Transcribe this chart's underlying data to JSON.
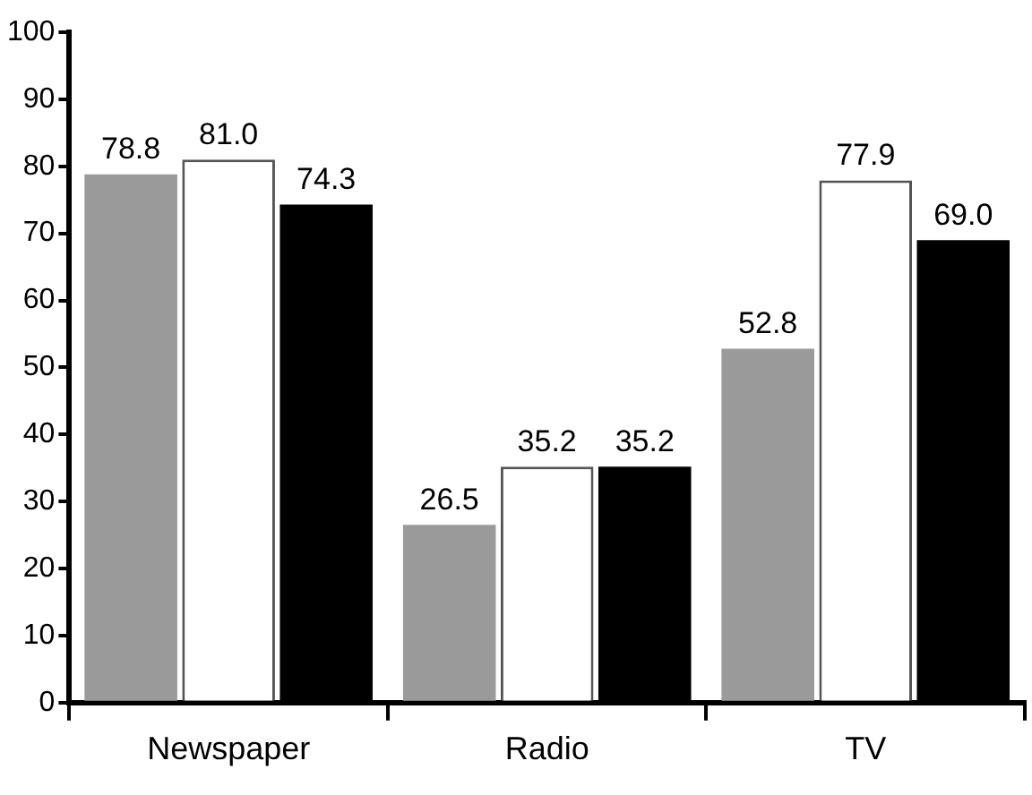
{
  "chart_data": {
    "type": "bar",
    "categories": [
      "Newspaper",
      "Radio",
      "TV"
    ],
    "series": [
      {
        "color": "#9a9a9a",
        "values": [
          78.8,
          26.5,
          52.8
        ],
        "value_labels": [
          "78.8",
          "26.5",
          "52.8"
        ]
      },
      {
        "color": "#ffffff",
        "values": [
          81.0,
          35.2,
          77.9
        ],
        "value_labels": [
          "81.0",
          "35.2",
          "77.9"
        ]
      },
      {
        "color": "#000000",
        "values": [
          74.3,
          35.2,
          69.0
        ],
        "value_labels": [
          "74.3",
          "35.2",
          "69.0"
        ]
      }
    ],
    "ylim": [
      0,
      100
    ],
    "yticks": [
      0,
      10,
      20,
      30,
      40,
      50,
      60,
      70,
      80,
      90,
      100
    ],
    "grid": false,
    "legend": false
  }
}
